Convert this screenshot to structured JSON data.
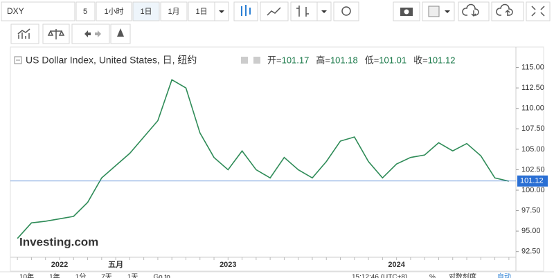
{
  "toolbar": {
    "symbol": "DXY",
    "interval": "5",
    "buttons": [
      "1小时",
      "1日",
      "1月",
      "1日"
    ]
  },
  "legend": {
    "title": "US Dollar Index, United States, 日, 纽约",
    "items": [
      {
        "label": "开=",
        "value": "101.17"
      },
      {
        "label": "高=",
        "value": "101.18"
      },
      {
        "label": "低=",
        "value": "101.01"
      },
      {
        "label": "收=",
        "value": "101.12"
      }
    ]
  },
  "watermark": "Investing.com",
  "footer": {
    "left": [
      "10年",
      "1年",
      "1分",
      "7天",
      "1天",
      "Go to..."
    ],
    "time": "15:12:46 (UTC+8)",
    "right": [
      "%",
      "对数刻度",
      "自动"
    ]
  },
  "chart_data": {
    "type": "line",
    "categories": [
      null,
      null,
      null,
      "2022",
      null,
      null,
      null,
      "五月",
      null,
      null,
      null,
      null,
      null,
      null,
      null,
      "2023",
      null,
      null,
      null,
      null,
      null,
      null,
      null,
      null,
      null,
      null,
      null,
      "2024",
      null,
      null,
      null,
      null,
      null,
      null,
      null,
      null
    ],
    "series": [
      {
        "name": "DXY",
        "color": "#2e8b57",
        "values": [
          94.1,
          96.0,
          96.2,
          96.5,
          96.8,
          98.5,
          101.5,
          103.0,
          104.5,
          106.5,
          108.5,
          113.5,
          112.5,
          107.0,
          104.0,
          102.5,
          104.8,
          102.5,
          101.5,
          104.0,
          102.5,
          101.5,
          103.5,
          106.0,
          106.5,
          103.5,
          101.5,
          103.2,
          104.0,
          104.3,
          105.8,
          104.8,
          105.7,
          104.2,
          101.5,
          101.1
        ]
      }
    ],
    "last_price": 101.12,
    "ylim": [
      91.8,
      117.5
    ],
    "yticks": [
      {
        "value": 92.5,
        "label": "92.50"
      },
      {
        "value": 95,
        "label": "95.00"
      },
      {
        "value": 97.5,
        "label": "97.50"
      },
      {
        "value": 100,
        "label": "100.00"
      },
      {
        "value": 102.5,
        "label": "102.50"
      },
      {
        "value": 105,
        "label": "105.00"
      },
      {
        "value": 107.5,
        "label": "107.50"
      },
      {
        "value": 110,
        "label": "110.00"
      },
      {
        "value": 112.5,
        "label": "112.50"
      },
      {
        "value": 115,
        "label": "115.00"
      }
    ]
  }
}
